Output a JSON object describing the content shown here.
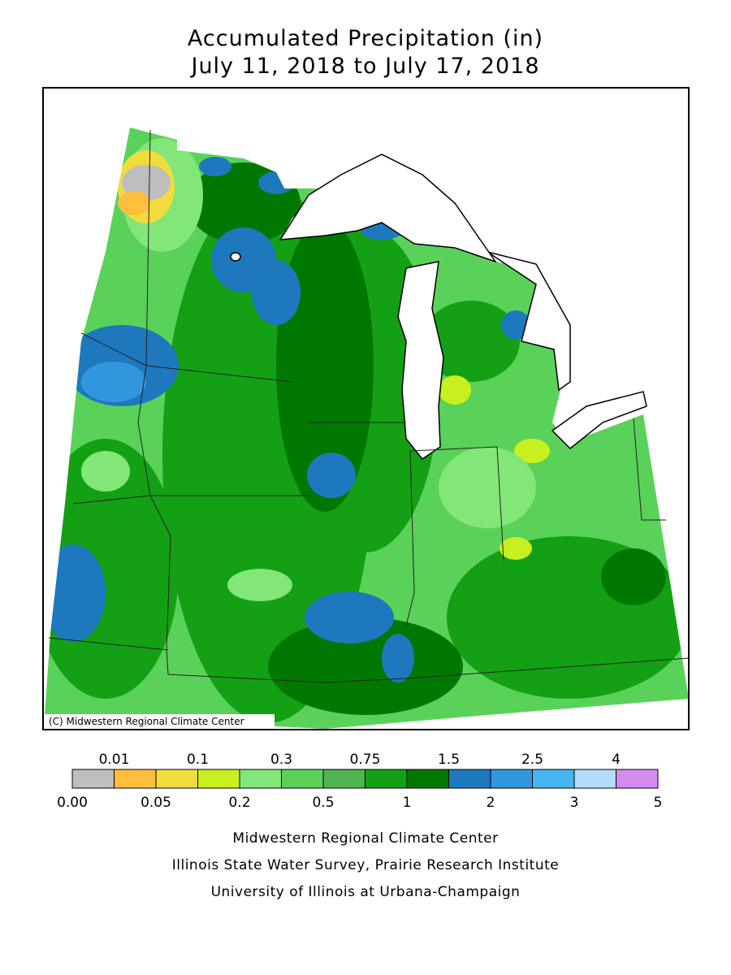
{
  "title": [
    "Accumulated Precipitation (in)",
    "July 11, 2018 to July 17, 2018"
  ],
  "map": {
    "credit": "(C) Midwestern Regional Climate Center"
  },
  "legend": {
    "labels": [
      "0.00",
      "0.01",
      "0.05",
      "0.1",
      "0.2",
      "0.3",
      "0.5",
      "0.75",
      "1",
      "1.5",
      "2",
      "2.5",
      "3",
      "4",
      "5"
    ],
    "colors": [
      "#bebebe",
      "#ffbe3c",
      "#f0dc3c",
      "#c8f01e",
      "#82e678",
      "#5ad25a",
      "#50b450",
      "#14a014",
      "#007800",
      "#1e78be",
      "#3296dc",
      "#46b4f0",
      "#b4dcfa",
      "#d28cf0"
    ]
  },
  "footer": [
    "Midwestern Regional Climate Center",
    "Illinois State Water Survey, Prairie Research Institute",
    "University of Illinois at Urbana-Champaign"
  ]
}
